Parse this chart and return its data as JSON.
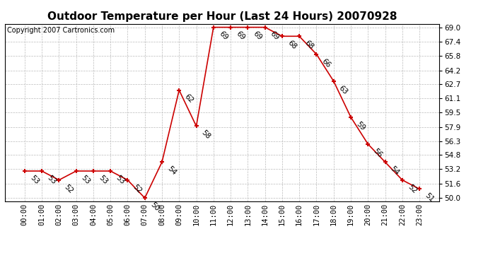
{
  "title": "Outdoor Temperature per Hour (Last 24 Hours) 20070928",
  "copyright": "Copyright 2007 Cartronics.com",
  "hours": [
    "00:00",
    "01:00",
    "02:00",
    "03:00",
    "04:00",
    "05:00",
    "06:00",
    "07:00",
    "08:00",
    "09:00",
    "10:00",
    "11:00",
    "12:00",
    "13:00",
    "14:00",
    "15:00",
    "16:00",
    "17:00",
    "18:00",
    "19:00",
    "20:00",
    "21:00",
    "22:00",
    "23:00"
  ],
  "temperatures": [
    53,
    53,
    52,
    53,
    53,
    53,
    52,
    50,
    54,
    62,
    58,
    69,
    69,
    69,
    69,
    68,
    68,
    66,
    63,
    59,
    56,
    54,
    52,
    51
  ],
  "line_color": "#cc0000",
  "marker_color": "#cc0000",
  "background_color": "#ffffff",
  "grid_color": "#bbbbbb",
  "ylim_min": 50.0,
  "ylim_max": 69.0,
  "yticks": [
    50.0,
    51.6,
    53.2,
    54.8,
    56.3,
    57.9,
    59.5,
    61.1,
    62.7,
    64.2,
    65.8,
    67.4,
    69.0
  ],
  "title_fontsize": 11,
  "copyright_fontsize": 7,
  "label_fontsize": 7.5,
  "tick_fontsize": 7.5
}
